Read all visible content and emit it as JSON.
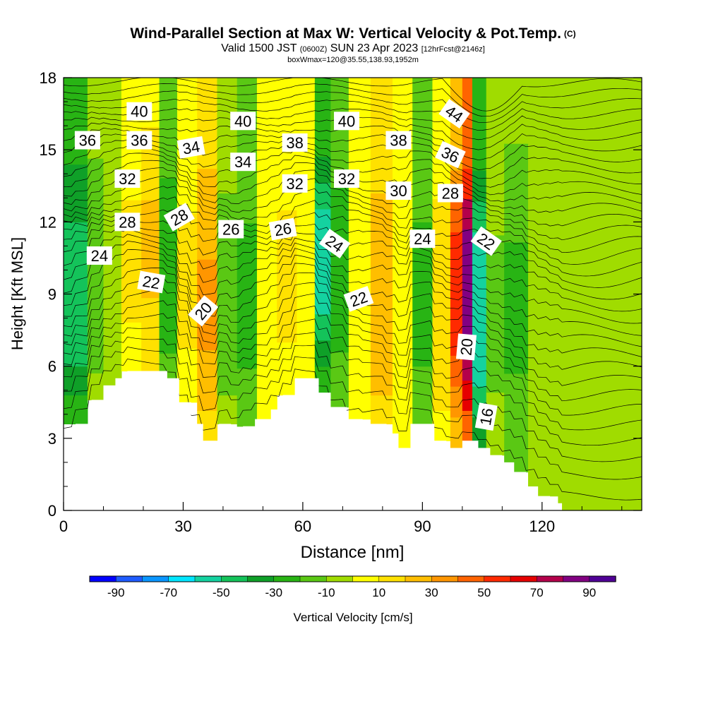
{
  "title": {
    "main": "Wind-Parallel Section at Max W: Vertical Velocity & Pot.Temp.",
    "copyright": "(C)",
    "valid_prefix": "Valid 1500 JST",
    "valid_utc": "(0600Z)",
    "valid_date": "SUN 23 Apr 2023",
    "forecast": "[12hrFcst@2146z]",
    "box_info": "boxWmax=120@35.55,138.93,1952m"
  },
  "chart_data": {
    "type": "heatmap",
    "xlabel": "Distance [nm]",
    "ylabel": "Height [Kft MSL]",
    "xlim": [
      0,
      145
    ],
    "ylim": [
      0,
      18
    ],
    "x_ticks": [
      0,
      30,
      60,
      90,
      120
    ],
    "y_ticks": [
      0,
      3,
      6,
      9,
      12,
      15,
      18
    ],
    "colorbar": {
      "label": "Vertical Velocity [cm/s]",
      "tick_labels": [
        -90,
        -70,
        -50,
        -30,
        -10,
        10,
        30,
        50,
        70,
        90
      ],
      "levels": [
        -100,
        -90,
        -80,
        -70,
        -60,
        -50,
        -40,
        -30,
        -20,
        -10,
        0,
        10,
        20,
        30,
        40,
        50,
        60,
        70,
        80,
        90,
        100
      ],
      "colors": [
        "#0000ff",
        "#1f5cff",
        "#0a96ff",
        "#00e6ff",
        "#14d2a0",
        "#14c35a",
        "#0fa028",
        "#28b414",
        "#5ac814",
        "#a0dc00",
        "#ffff00",
        "#ffe100",
        "#ffbe00",
        "#ff9600",
        "#ff6400",
        "#ff2a00",
        "#e60000",
        "#b4004b",
        "#820082",
        "#500096"
      ]
    },
    "field_columns": [
      {
        "x": 4,
        "w": -50
      },
      {
        "x": 8,
        "w": -18
      },
      {
        "x": 12,
        "w": -5
      },
      {
        "x": 17,
        "w": 12
      },
      {
        "x": 22,
        "w": 22
      },
      {
        "x": 26,
        "w": -30
      },
      {
        "x": 31,
        "w": 12
      },
      {
        "x": 36,
        "w": 32
      },
      {
        "x": 41,
        "w": -15
      },
      {
        "x": 46,
        "w": -25
      },
      {
        "x": 51,
        "w": 10
      },
      {
        "x": 56,
        "w": 12
      },
      {
        "x": 61,
        "w": 5
      },
      {
        "x": 65,
        "w": -55
      },
      {
        "x": 69,
        "w": -28
      },
      {
        "x": 74,
        "w": 8
      },
      {
        "x": 80,
        "w": 30
      },
      {
        "x": 85,
        "w": 10
      },
      {
        "x": 90,
        "w": -25
      },
      {
        "x": 95,
        "w": 15
      },
      {
        "x": 99,
        "w": 55
      },
      {
        "x": 101,
        "w": 90
      },
      {
        "x": 104,
        "w": -60
      },
      {
        "x": 108,
        "w": -12
      },
      {
        "x": 113,
        "w": -22
      },
      {
        "x": 120,
        "w": -10
      },
      {
        "x": 128,
        "w": -5
      },
      {
        "x": 140,
        "w": -10
      }
    ],
    "terrain": [
      {
        "x": 0,
        "h": 2.9
      },
      {
        "x": 3,
        "h": 3.6
      },
      {
        "x": 7,
        "h": 4.6
      },
      {
        "x": 10,
        "h": 5.2
      },
      {
        "x": 13,
        "h": 5.5
      },
      {
        "x": 16,
        "h": 5.8
      },
      {
        "x": 26,
        "h": 5.5
      },
      {
        "x": 29,
        "h": 4.5
      },
      {
        "x": 32,
        "h": 3.6
      },
      {
        "x": 35,
        "h": 2.9
      },
      {
        "x": 39,
        "h": 3.6
      },
      {
        "x": 42,
        "h": 3.2
      },
      {
        "x": 45,
        "h": 3.5
      },
      {
        "x": 48,
        "h": 3.8
      },
      {
        "x": 52,
        "h": 4.2
      },
      {
        "x": 55,
        "h": 4.8
      },
      {
        "x": 58,
        "h": 5.5
      },
      {
        "x": 64,
        "h": 4.9
      },
      {
        "x": 67,
        "h": 4.3
      },
      {
        "x": 71,
        "h": 3.8
      },
      {
        "x": 75,
        "h": 3.6
      },
      {
        "x": 81,
        "h": 3.2
      },
      {
        "x": 84,
        "h": 2.6
      },
      {
        "x": 87,
        "h": 3.6
      },
      {
        "x": 93,
        "h": 2.9
      },
      {
        "x": 96,
        "h": 2.6
      },
      {
        "x": 100,
        "h": 2.9
      },
      {
        "x": 104,
        "h": 2.6
      },
      {
        "x": 107,
        "h": 2.3
      },
      {
        "x": 110,
        "h": 2.0
      },
      {
        "x": 113,
        "h": 1.6
      },
      {
        "x": 116,
        "h": 1.0
      },
      {
        "x": 119,
        "h": 0.6
      },
      {
        "x": 122,
        "h": 0.3
      },
      {
        "x": 125,
        "h": 0
      }
    ],
    "isentrope_labels": [
      {
        "text": "40",
        "x": 19,
        "y": 16.6,
        "rot": 0
      },
      {
        "text": "40",
        "x": 45,
        "y": 16.2,
        "rot": 0
      },
      {
        "text": "40",
        "x": 71,
        "y": 16.2,
        "rot": 0
      },
      {
        "text": "44",
        "x": 98,
        "y": 16.5,
        "rot": 35
      },
      {
        "text": "36",
        "x": 6,
        "y": 15.4,
        "rot": 0
      },
      {
        "text": "36",
        "x": 19,
        "y": 15.4,
        "rot": 0
      },
      {
        "text": "34",
        "x": 32,
        "y": 15.1,
        "rot": -10
      },
      {
        "text": "38",
        "x": 58,
        "y": 15.3,
        "rot": 0
      },
      {
        "text": "38",
        "x": 84,
        "y": 15.4,
        "rot": 0
      },
      {
        "text": "36",
        "x": 97,
        "y": 14.8,
        "rot": 25
      },
      {
        "text": "34",
        "x": 45,
        "y": 14.5,
        "rot": 0
      },
      {
        "text": "32",
        "x": 16,
        "y": 13.8,
        "rot": 0
      },
      {
        "text": "32",
        "x": 58,
        "y": 13.6,
        "rot": 0
      },
      {
        "text": "32",
        "x": 71,
        "y": 13.8,
        "rot": 0
      },
      {
        "text": "30",
        "x": 84,
        "y": 13.3,
        "rot": 0
      },
      {
        "text": "28",
        "x": 97,
        "y": 13.2,
        "rot": 0
      },
      {
        "text": "28",
        "x": 16,
        "y": 12.0,
        "rot": 0
      },
      {
        "text": "28",
        "x": 29,
        "y": 12.2,
        "rot": -30
      },
      {
        "text": "26",
        "x": 42,
        "y": 11.7,
        "rot": 0
      },
      {
        "text": "26",
        "x": 55,
        "y": 11.7,
        "rot": -10
      },
      {
        "text": "24",
        "x": 68,
        "y": 11.1,
        "rot": 35
      },
      {
        "text": "24",
        "x": 90,
        "y": 11.3,
        "rot": 0
      },
      {
        "text": "22",
        "x": 106,
        "y": 11.2,
        "rot": 35
      },
      {
        "text": "24",
        "x": 9,
        "y": 10.6,
        "rot": 0
      },
      {
        "text": "22",
        "x": 22,
        "y": 9.5,
        "rot": 10
      },
      {
        "text": "22",
        "x": 74,
        "y": 8.8,
        "rot": -20
      },
      {
        "text": "20",
        "x": 35,
        "y": 8.3,
        "rot": -50
      },
      {
        "text": "20",
        "x": 101,
        "y": 6.8,
        "rot": -85
      },
      {
        "text": "16",
        "x": 106,
        "y": 3.9,
        "rot": -80
      }
    ]
  }
}
